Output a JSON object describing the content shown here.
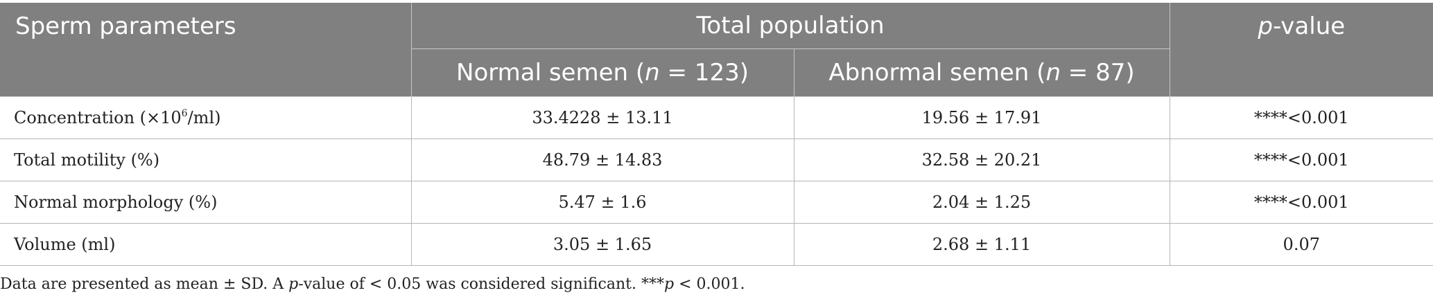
{
  "header": {
    "col_params": "Sperm parameters",
    "col_population": "Total population",
    "col_p_italic": "p",
    "col_p_rest": "-value",
    "normal_label": "Normal semen (",
    "normal_n_italic": "n",
    "normal_n_value": " = 123)",
    "abnormal_label": "Abnormal semen (",
    "abnormal_n_italic": "n",
    "abnormal_n_value": " = 87)"
  },
  "rows": [
    {
      "label_main": "Concentration (×10",
      "label_sup": "6",
      "label_tail": "/ml)",
      "normal": "33.4228 ± 13.11",
      "abnormal": "19.56 ± 17.91",
      "p": "****<0.001"
    },
    {
      "label": "Total motility (%)",
      "normal": "48.79 ± 14.83",
      "abnormal": "32.58 ± 20.21",
      "p": "****<0.001"
    },
    {
      "label": "Normal morphology (%)",
      "normal": "5.47 ± 1.6",
      "abnormal": "2.04 ± 1.25",
      "p": "****<0.001"
    },
    {
      "label": "Volume (ml)",
      "normal": "3.05 ± 1.65",
      "abnormal": "2.68 ± 1.11",
      "p": "0.07"
    }
  ],
  "footnote": {
    "part1": "Data are presented as mean ± SD. A ",
    "p1_italic": "p",
    "part2": "-value of < 0.05 was considered significant. ***",
    "p2_italic": "p",
    "part3": " < 0.001."
  }
}
